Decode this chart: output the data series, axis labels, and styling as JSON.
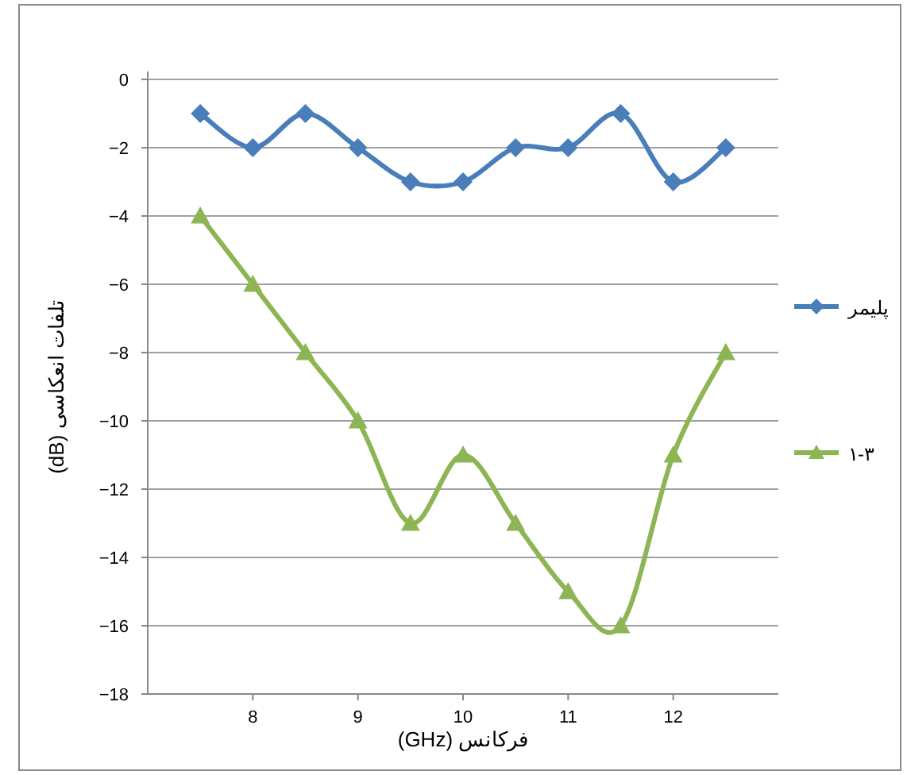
{
  "chart_data": {
    "type": "line",
    "xlabel": "فرکانس (GHz)",
    "ylabel": "تلفات انعکاسی (dB)",
    "x": [
      7.5,
      8,
      8.5,
      9,
      9.5,
      10,
      10.5,
      11,
      11.5,
      12,
      12.5
    ],
    "xlim": [
      7,
      13
    ],
    "xticks": [
      8,
      9,
      10,
      11,
      12
    ],
    "ylim": [
      -18,
      0
    ],
    "yticks": [
      -18,
      -16,
      -14,
      -12,
      -10,
      -8,
      -6,
      -4,
      -2,
      0
    ],
    "grid": "y",
    "legend": "right",
    "line_style": "solid",
    "series": [
      {
        "name": "پلیمر",
        "color": "#4a7ebb",
        "marker": "diamond",
        "values": [
          -1,
          -2,
          -1,
          -2,
          -3,
          -3,
          -2,
          -2,
          -1,
          -3,
          -2
        ]
      },
      {
        "name": "۱-۳",
        "color": "#8db553",
        "marker": "triangle",
        "values": [
          -4,
          -6,
          -8,
          -10,
          -13,
          -11,
          -13,
          -15,
          -16,
          -11,
          -8
        ]
      }
    ]
  }
}
